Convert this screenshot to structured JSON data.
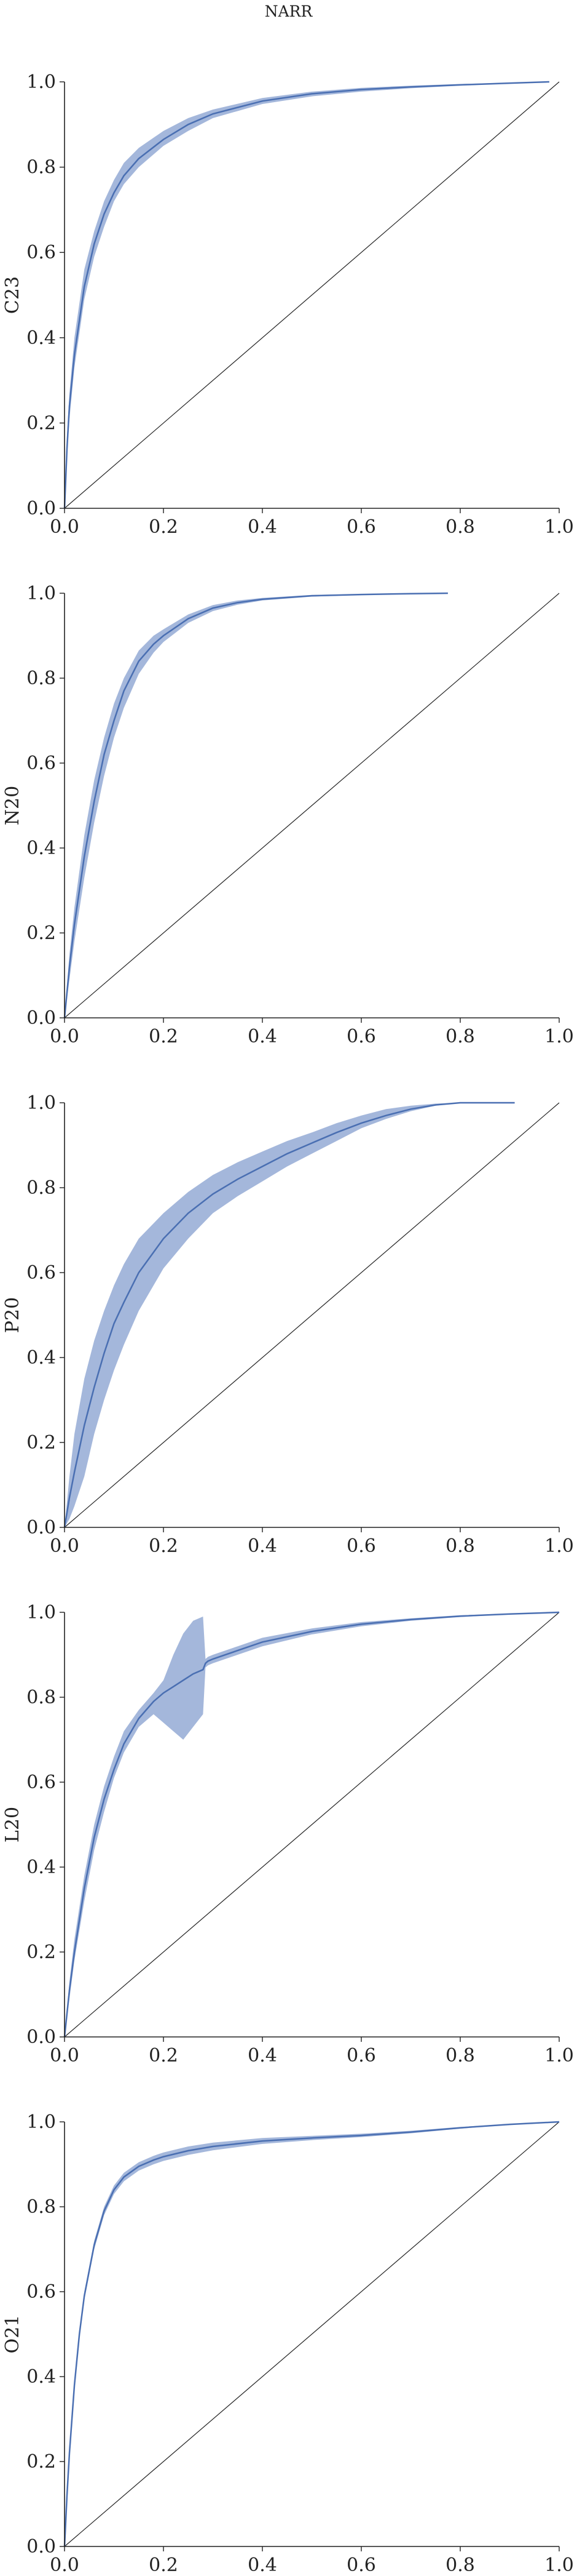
{
  "figure": {
    "title": "NARR"
  },
  "chart_data": [
    {
      "type": "line",
      "ylabel": "C23",
      "xlim": [
        0,
        1
      ],
      "ylim": [
        0,
        1
      ],
      "xticks": [
        "0.0",
        "0.2",
        "0.4",
        "0.6",
        "0.8",
        "1.0"
      ],
      "yticks": [
        "0.0",
        "0.2",
        "0.4",
        "0.6",
        "0.8",
        "1.0"
      ],
      "reference_line": {
        "x": [
          0,
          1
        ],
        "y": [
          0,
          1
        ]
      },
      "series": [
        {
          "x": [
            0.0,
            0.005,
            0.01,
            0.02,
            0.04,
            0.06,
            0.08,
            0.1,
            0.12,
            0.15,
            0.2,
            0.25,
            0.3,
            0.4,
            0.5,
            0.6,
            0.7,
            0.8,
            0.9,
            0.98
          ],
          "y": [
            0.0,
            0.14,
            0.24,
            0.36,
            0.52,
            0.62,
            0.69,
            0.74,
            0.78,
            0.82,
            0.865,
            0.9,
            0.925,
            0.955,
            0.972,
            0.982,
            0.988,
            0.993,
            0.997,
            1.0
          ],
          "lower": [
            0.0,
            0.12,
            0.21,
            0.33,
            0.49,
            0.59,
            0.66,
            0.72,
            0.76,
            0.8,
            0.85,
            0.885,
            0.915,
            0.948,
            0.966,
            0.977,
            0.985,
            0.991,
            0.996,
            1.0
          ],
          "upper": [
            0.0,
            0.17,
            0.27,
            0.4,
            0.56,
            0.65,
            0.72,
            0.77,
            0.81,
            0.845,
            0.885,
            0.915,
            0.935,
            0.962,
            0.977,
            0.986,
            0.991,
            0.995,
            0.998,
            1.0
          ]
        }
      ]
    },
    {
      "type": "line",
      "ylabel": "N20",
      "xlim": [
        0,
        1
      ],
      "ylim": [
        0,
        1
      ],
      "xticks": [
        "0.0",
        "0.2",
        "0.4",
        "0.6",
        "0.8",
        "1.0"
      ],
      "yticks": [
        "0.0",
        "0.2",
        "0.4",
        "0.6",
        "0.8",
        "1.0"
      ],
      "reference_line": {
        "x": [
          0,
          1
        ],
        "y": [
          0,
          1
        ]
      },
      "series": [
        {
          "x": [
            0.0,
            0.01,
            0.02,
            0.04,
            0.06,
            0.08,
            0.1,
            0.12,
            0.15,
            0.18,
            0.2,
            0.25,
            0.3,
            0.35,
            0.4,
            0.5,
            0.6,
            0.7,
            0.775
          ],
          "y": [
            0.0,
            0.12,
            0.22,
            0.38,
            0.51,
            0.62,
            0.7,
            0.77,
            0.84,
            0.88,
            0.9,
            0.94,
            0.965,
            0.978,
            0.986,
            0.994,
            0.997,
            0.999,
            1.0
          ],
          "lower": [
            0.0,
            0.09,
            0.18,
            0.33,
            0.46,
            0.57,
            0.66,
            0.73,
            0.81,
            0.86,
            0.885,
            0.93,
            0.958,
            0.973,
            0.983,
            0.992,
            0.996,
            0.999,
            1.0
          ],
          "upper": [
            0.0,
            0.15,
            0.26,
            0.43,
            0.56,
            0.66,
            0.74,
            0.8,
            0.865,
            0.9,
            0.915,
            0.95,
            0.972,
            0.983,
            0.989,
            0.996,
            0.998,
            1.0,
            1.0
          ]
        }
      ]
    },
    {
      "type": "line",
      "ylabel": "P20",
      "xlim": [
        0,
        1
      ],
      "ylim": [
        0,
        1
      ],
      "xticks": [
        "0.0",
        "0.2",
        "0.4",
        "0.6",
        "0.8",
        "1.0"
      ],
      "yticks": [
        "0.0",
        "0.2",
        "0.4",
        "0.6",
        "0.8",
        "1.0"
      ],
      "reference_line": {
        "x": [
          0,
          1
        ],
        "y": [
          0,
          1
        ]
      },
      "series": [
        {
          "x": [
            0.0,
            0.01,
            0.02,
            0.04,
            0.06,
            0.08,
            0.1,
            0.12,
            0.15,
            0.2,
            0.25,
            0.3,
            0.35,
            0.4,
            0.45,
            0.5,
            0.55,
            0.6,
            0.65,
            0.7,
            0.75,
            0.8,
            0.85,
            0.91
          ],
          "y": [
            0.0,
            0.07,
            0.13,
            0.24,
            0.33,
            0.41,
            0.48,
            0.53,
            0.6,
            0.68,
            0.74,
            0.785,
            0.82,
            0.85,
            0.88,
            0.905,
            0.93,
            0.952,
            0.97,
            0.985,
            0.995,
            1.0,
            1.0,
            1.0
          ],
          "lower": [
            0.0,
            0.02,
            0.05,
            0.12,
            0.22,
            0.3,
            0.37,
            0.43,
            0.51,
            0.61,
            0.68,
            0.74,
            0.78,
            0.815,
            0.85,
            0.88,
            0.91,
            0.94,
            0.962,
            0.98,
            0.993,
            1.0,
            1.0,
            1.0
          ],
          "upper": [
            0.0,
            0.12,
            0.22,
            0.35,
            0.44,
            0.51,
            0.57,
            0.62,
            0.68,
            0.74,
            0.79,
            0.83,
            0.86,
            0.885,
            0.91,
            0.93,
            0.952,
            0.97,
            0.985,
            0.993,
            0.998,
            1.0,
            1.0,
            1.0
          ]
        }
      ]
    },
    {
      "type": "line",
      "ylabel": "L20",
      "xlim": [
        0,
        1
      ],
      "ylim": [
        0,
        1
      ],
      "xticks": [
        "0.0",
        "0.2",
        "0.4",
        "0.6",
        "0.8",
        "1.0"
      ],
      "yticks": [
        "0.0",
        "0.2",
        "0.4",
        "0.6",
        "0.8",
        "1.0"
      ],
      "reference_line": {
        "x": [
          0,
          1
        ],
        "y": [
          0,
          1
        ]
      },
      "series": [
        {
          "x": [
            0.0,
            0.01,
            0.02,
            0.04,
            0.06,
            0.08,
            0.1,
            0.12,
            0.15,
            0.18,
            0.2,
            0.22,
            0.24,
            0.26,
            0.28,
            0.285,
            0.29,
            0.3,
            0.35,
            0.4,
            0.5,
            0.6,
            0.7,
            0.8,
            0.9,
            1.0
          ],
          "y": [
            0.0,
            0.11,
            0.2,
            0.35,
            0.47,
            0.56,
            0.63,
            0.69,
            0.75,
            0.79,
            0.81,
            0.825,
            0.84,
            0.855,
            0.865,
            0.88,
            0.885,
            0.89,
            0.91,
            0.93,
            0.955,
            0.972,
            0.983,
            0.991,
            0.996,
            1.0
          ],
          "lower": [
            0.0,
            0.09,
            0.18,
            0.32,
            0.44,
            0.53,
            0.61,
            0.67,
            0.73,
            0.76,
            0.74,
            0.72,
            0.7,
            0.73,
            0.76,
            0.87,
            0.875,
            0.88,
            0.9,
            0.92,
            0.948,
            0.967,
            0.98,
            0.989,
            0.995,
            1.0
          ],
          "upper": [
            0.0,
            0.13,
            0.23,
            0.38,
            0.5,
            0.59,
            0.66,
            0.72,
            0.77,
            0.81,
            0.84,
            0.9,
            0.95,
            0.98,
            0.99,
            0.89,
            0.895,
            0.9,
            0.92,
            0.94,
            0.962,
            0.977,
            0.986,
            0.993,
            0.997,
            1.0
          ]
        }
      ]
    },
    {
      "type": "line",
      "ylabel": "O21",
      "xlim": [
        0,
        1
      ],
      "ylim": [
        0,
        1
      ],
      "xticks": [
        "0.0",
        "0.2",
        "0.4",
        "0.6",
        "0.8",
        "1.0"
      ],
      "yticks": [
        "0.0",
        "0.2",
        "0.4",
        "0.6",
        "0.8",
        "1.0"
      ],
      "reference_line": {
        "x": [
          0,
          1
        ],
        "y": [
          0,
          1
        ]
      },
      "series": [
        {
          "x": [
            0.0,
            0.005,
            0.01,
            0.02,
            0.03,
            0.04,
            0.06,
            0.08,
            0.1,
            0.12,
            0.15,
            0.18,
            0.2,
            0.25,
            0.3,
            0.4,
            0.5,
            0.6,
            0.7,
            0.8,
            0.9,
            1.0
          ],
          "y": [
            0.0,
            0.12,
            0.22,
            0.38,
            0.5,
            0.59,
            0.71,
            0.79,
            0.84,
            0.87,
            0.895,
            0.91,
            0.918,
            0.932,
            0.942,
            0.955,
            0.962,
            0.968,
            0.976,
            0.986,
            0.994,
            1.0
          ],
          "lower": [
            0.0,
            0.11,
            0.21,
            0.37,
            0.49,
            0.58,
            0.7,
            0.78,
            0.83,
            0.86,
            0.885,
            0.9,
            0.908,
            0.922,
            0.933,
            0.948,
            0.957,
            0.964,
            0.973,
            0.984,
            0.993,
            1.0
          ],
          "upper": [
            0.0,
            0.13,
            0.23,
            0.39,
            0.51,
            0.6,
            0.72,
            0.8,
            0.85,
            0.88,
            0.905,
            0.92,
            0.928,
            0.942,
            0.951,
            0.962,
            0.967,
            0.972,
            0.979,
            0.988,
            0.995,
            1.0
          ]
        }
      ]
    }
  ]
}
